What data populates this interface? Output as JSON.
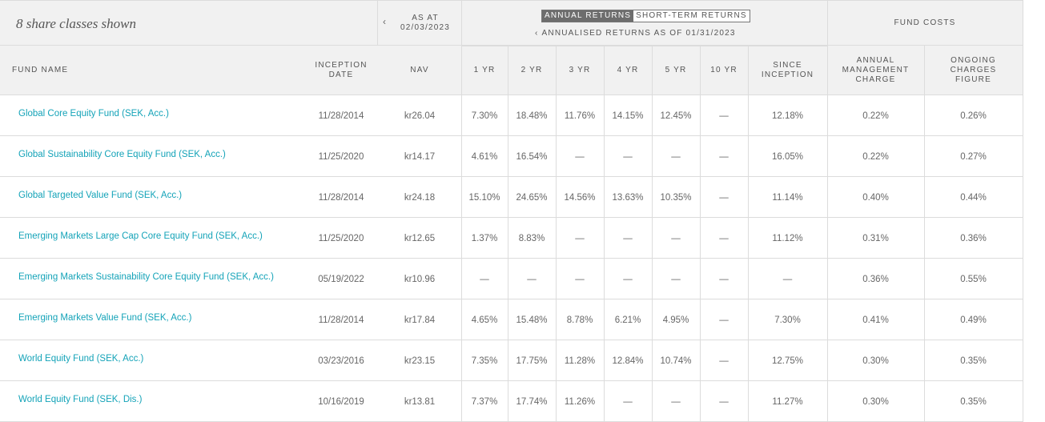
{
  "header": {
    "share_classes": "8 share classes shown",
    "as_at_label": "AS AT",
    "as_at_date": "02/03/2023",
    "toggle_annual": "ANNUAL RETURNS",
    "toggle_short": "SHORT-TERM RETURNS",
    "annualised_label": "ANNUALISED RETURNS AS OF 01/31/2023",
    "fund_costs": "FUND COSTS"
  },
  "icons": {
    "prev_date": "chevron-left-icon",
    "prev_period": "chevron-left-icon"
  },
  "colors": {
    "link": "#14a3b8",
    "header_bg": "#f1f1f1",
    "active_toggle": "#6d6d6d"
  },
  "columns": {
    "fund_name": "FUND NAME",
    "inception_1": "INCEPTION",
    "inception_2": "DATE",
    "nav": "NAV",
    "y1": "1 YR",
    "y2": "2 YR",
    "y3": "3 YR",
    "y4": "4 YR",
    "y5": "5 YR",
    "y10": "10 YR",
    "since_1": "SINCE",
    "since_2": "INCEPTION",
    "amc_1": "ANNUAL",
    "amc_2": "MANAGEMENT",
    "amc_3": "CHARGE",
    "ocf_1": "ONGOING",
    "ocf_2": "CHARGES",
    "ocf_3": "FIGURE"
  },
  "rows": [
    {
      "name": "Global Core Equity Fund (SEK, Acc.)",
      "inception": "11/28/2014",
      "nav": "kr26.04",
      "y1": "7.30%",
      "y2": "18.48%",
      "y3": "11.76%",
      "y4": "14.15%",
      "y5": "12.45%",
      "y10": "—",
      "since": "12.18%",
      "amc": "0.22%",
      "ocf": "0.26%"
    },
    {
      "name": "Global Sustainability Core Equity Fund (SEK, Acc.)",
      "inception": "11/25/2020",
      "nav": "kr14.17",
      "y1": "4.61%",
      "y2": "16.54%",
      "y3": "—",
      "y4": "—",
      "y5": "—",
      "y10": "—",
      "since": "16.05%",
      "amc": "0.22%",
      "ocf": "0.27%"
    },
    {
      "name": "Global Targeted Value Fund (SEK, Acc.)",
      "inception": "11/28/2014",
      "nav": "kr24.18",
      "y1": "15.10%",
      "y2": "24.65%",
      "y3": "14.56%",
      "y4": "13.63%",
      "y5": "10.35%",
      "y10": "—",
      "since": "11.14%",
      "amc": "0.40%",
      "ocf": "0.44%"
    },
    {
      "name": "Emerging Markets Large Cap Core Equity Fund (SEK, Acc.)",
      "inception": "11/25/2020",
      "nav": "kr12.65",
      "y1": "1.37%",
      "y2": "8.83%",
      "y3": "—",
      "y4": "—",
      "y5": "—",
      "y10": "—",
      "since": "11.12%",
      "amc": "0.31%",
      "ocf": "0.36%"
    },
    {
      "name": "Emerging Markets Sustainability Core Equity Fund (SEK, Acc.)",
      "inception": "05/19/2022",
      "nav": "kr10.96",
      "y1": "—",
      "y2": "—",
      "y3": "—",
      "y4": "—",
      "y5": "—",
      "y10": "—",
      "since": "—",
      "amc": "0.36%",
      "ocf": "0.55%"
    },
    {
      "name": "Emerging Markets Value Fund (SEK, Acc.)",
      "inception": "11/28/2014",
      "nav": "kr17.84",
      "y1": "4.65%",
      "y2": "15.48%",
      "y3": "8.78%",
      "y4": "6.21%",
      "y5": "4.95%",
      "y10": "—",
      "since": "7.30%",
      "amc": "0.41%",
      "ocf": "0.49%"
    },
    {
      "name": "World Equity Fund (SEK, Acc.)",
      "inception": "03/23/2016",
      "nav": "kr23.15",
      "y1": "7.35%",
      "y2": "17.75%",
      "y3": "11.28%",
      "y4": "12.84%",
      "y5": "10.74%",
      "y10": "—",
      "since": "12.75%",
      "amc": "0.30%",
      "ocf": "0.35%"
    },
    {
      "name": "World Equity Fund (SEK, Dis.)",
      "inception": "10/16/2019",
      "nav": "kr13.81",
      "y1": "7.37%",
      "y2": "17.74%",
      "y3": "11.26%",
      "y4": "—",
      "y5": "—",
      "y10": "—",
      "since": "11.27%",
      "amc": "0.30%",
      "ocf": "0.35%"
    }
  ]
}
